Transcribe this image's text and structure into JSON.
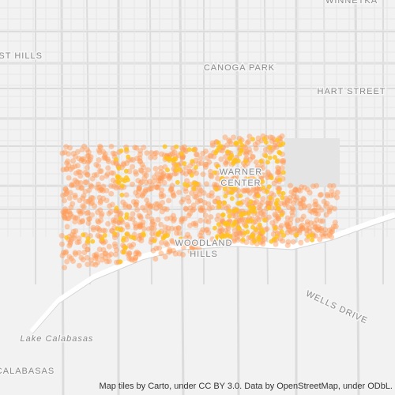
{
  "map": {
    "labels": [
      {
        "lines": [
          "WINNETKA"
        ]
      },
      {
        "lines": [
          "EST HILLS"
        ]
      },
      {
        "lines": [
          "CANOGA PARK"
        ]
      },
      {
        "lines": [
          "HART STREET"
        ]
      },
      {
        "lines": [
          "WARNER",
          "CENTER"
        ]
      },
      {
        "lines": [
          "WOODLAND",
          "HILLS"
        ]
      },
      {
        "lines": [
          "WELLS DRIVE"
        ]
      },
      {
        "lines": [
          "Lake Calabasas"
        ]
      },
      {
        "lines": [
          "CALABASAS"
        ]
      }
    ],
    "attribution": "Map tiles by Carto, under CC BY 3.0. Data by OpenStreetMap, under ODbL."
  }
}
